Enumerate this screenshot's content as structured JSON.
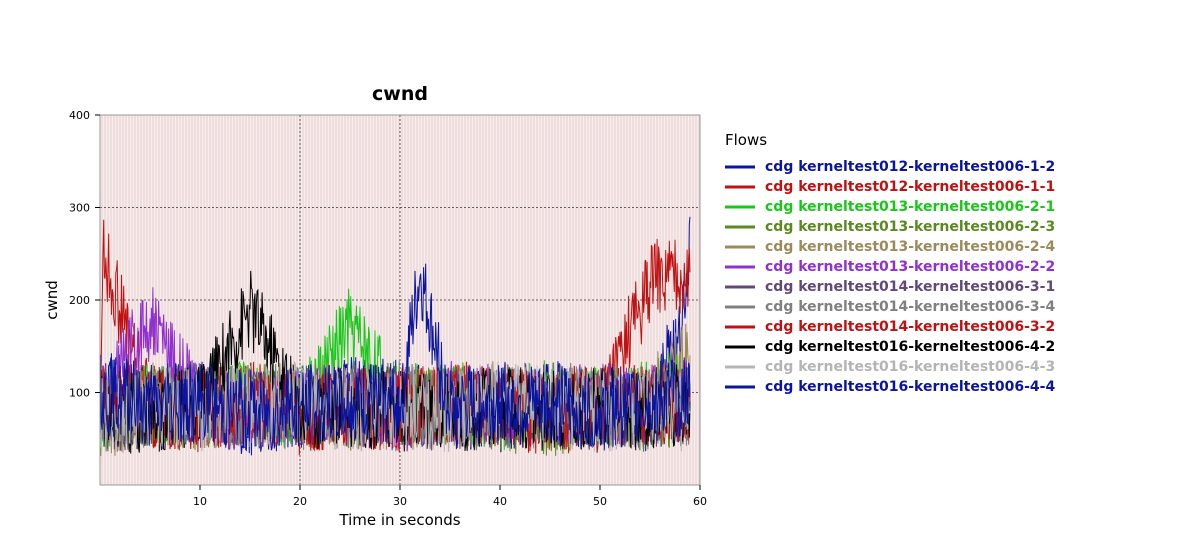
{
  "chart_data": {
    "type": "line",
    "title": "cwnd",
    "xlabel": "Time in seconds",
    "ylabel": "cwnd",
    "xlim": [
      0,
      60
    ],
    "ylim": [
      0,
      400
    ],
    "x_ticks": [
      10,
      20,
      30,
      40,
      50,
      60
    ],
    "y_ticks": [
      100,
      200,
      300,
      400
    ],
    "grid": "dotted major gridlines at x=20,30 and y=100,200,300; faint reddish dense vertical background lines",
    "legend_title": "Flows",
    "legend_position": "right",
    "series": [
      {
        "name": "cdg kerneltest012-kerneltest006-1-2",
        "color": "#0a14a0",
        "x": [
          0,
          5,
          10,
          15,
          20,
          25,
          30,
          35,
          40,
          45,
          50,
          55,
          58.5,
          59
        ],
        "values": [
          115,
          80,
          90,
          75,
          85,
          95,
          90,
          85,
          80,
          90,
          85,
          80,
          180,
          290
        ]
      },
      {
        "name": "cdg kerneltest012-kerneltest006-1-1",
        "color": "#c01010",
        "x": [
          0,
          0.3,
          5,
          10,
          15,
          20,
          25,
          30,
          35,
          40,
          45,
          50,
          55,
          59
        ],
        "values": [
          90,
          250,
          85,
          80,
          90,
          75,
          85,
          80,
          90,
          85,
          75,
          80,
          220,
          230
        ]
      },
      {
        "name": "cdg kerneltest013-kerneltest006-2-1",
        "color": "#18c818",
        "x": [
          0,
          5,
          10,
          15,
          20,
          25,
          30,
          35,
          40,
          45,
          50,
          55,
          59
        ],
        "values": [
          80,
          90,
          85,
          95,
          80,
          170,
          85,
          90,
          80,
          95,
          85,
          90,
          110
        ]
      },
      {
        "name": "cdg kerneltest013-kerneltest006-2-3",
        "color": "#5a8a1e",
        "x": [
          0,
          5,
          10,
          15,
          20,
          25,
          30,
          35,
          40,
          45,
          50,
          55,
          59
        ],
        "values": [
          75,
          85,
          80,
          90,
          85,
          80,
          90,
          85,
          80,
          75,
          85,
          80,
          90
        ]
      },
      {
        "name": "cdg kerneltest013-kerneltest006-2-4",
        "color": "#9c8a5a",
        "x": [
          0,
          5,
          10,
          15,
          20,
          25,
          30,
          35,
          40,
          45,
          50,
          55,
          59
        ],
        "values": [
          70,
          90,
          80,
          85,
          90,
          85,
          80,
          85,
          90,
          80,
          85,
          90,
          140
        ]
      },
      {
        "name": "cdg kerneltest013-kerneltest006-2-2",
        "color": "#9030d0",
        "x": [
          0,
          5,
          10,
          15,
          20,
          25,
          30,
          35,
          40,
          45,
          50,
          55,
          59
        ],
        "values": [
          85,
          180,
          85,
          80,
          90,
          85,
          80,
          90,
          85,
          80,
          90,
          85,
          95
        ]
      },
      {
        "name": "cdg kerneltest014-kerneltest006-3-1",
        "color": "#604878",
        "x": [
          0,
          5,
          10,
          15,
          20,
          25,
          30,
          35,
          40,
          45,
          50,
          55,
          59
        ],
        "values": [
          80,
          85,
          90,
          80,
          85,
          90,
          85,
          80,
          90,
          85,
          80,
          85,
          90
        ]
      },
      {
        "name": "cdg kerneltest014-kerneltest006-3-4",
        "color": "#808080",
        "x": [
          0,
          5,
          10,
          15,
          20,
          25,
          30,
          35,
          40,
          45,
          50,
          55,
          59
        ],
        "values": [
          85,
          80,
          90,
          85,
          80,
          85,
          90,
          85,
          80,
          90,
          85,
          80,
          85
        ]
      },
      {
        "name": "cdg kerneltest014-kerneltest006-3-2",
        "color": "#c01010",
        "x": [
          0,
          5,
          10,
          15,
          20,
          25,
          30,
          35,
          40,
          45,
          50,
          55,
          59
        ],
        "values": [
          90,
          85,
          80,
          90,
          85,
          80,
          85,
          90,
          85,
          80,
          90,
          85,
          90
        ]
      },
      {
        "name": "cdg kerneltest016-kerneltest006-4-2",
        "color": "#000000",
        "x": [
          0,
          5,
          10,
          15,
          20,
          25,
          30,
          35,
          40,
          45,
          50,
          55,
          59
        ],
        "values": [
          75,
          80,
          85,
          190,
          80,
          85,
          80,
          75,
          85,
          80,
          85,
          80,
          90
        ]
      },
      {
        "name": "cdg kerneltest016-kerneltest006-4-3",
        "color": "#b4b4b4",
        "x": [
          0,
          5,
          10,
          15,
          20,
          25,
          30,
          35,
          40,
          45,
          50,
          55,
          59
        ],
        "values": [
          80,
          85,
          80,
          85,
          90,
          80,
          85,
          80,
          90,
          85,
          80,
          85,
          80
        ]
      },
      {
        "name": "cdg kerneltest016-kerneltest006-4-4",
        "color": "#0a14a0",
        "x": [
          0,
          5,
          10,
          15,
          20,
          25,
          30,
          32,
          35,
          40,
          45,
          50,
          55,
          59
        ],
        "values": [
          100,
          85,
          90,
          80,
          85,
          90,
          85,
          225,
          80,
          90,
          85,
          80,
          90,
          95
        ]
      }
    ]
  }
}
